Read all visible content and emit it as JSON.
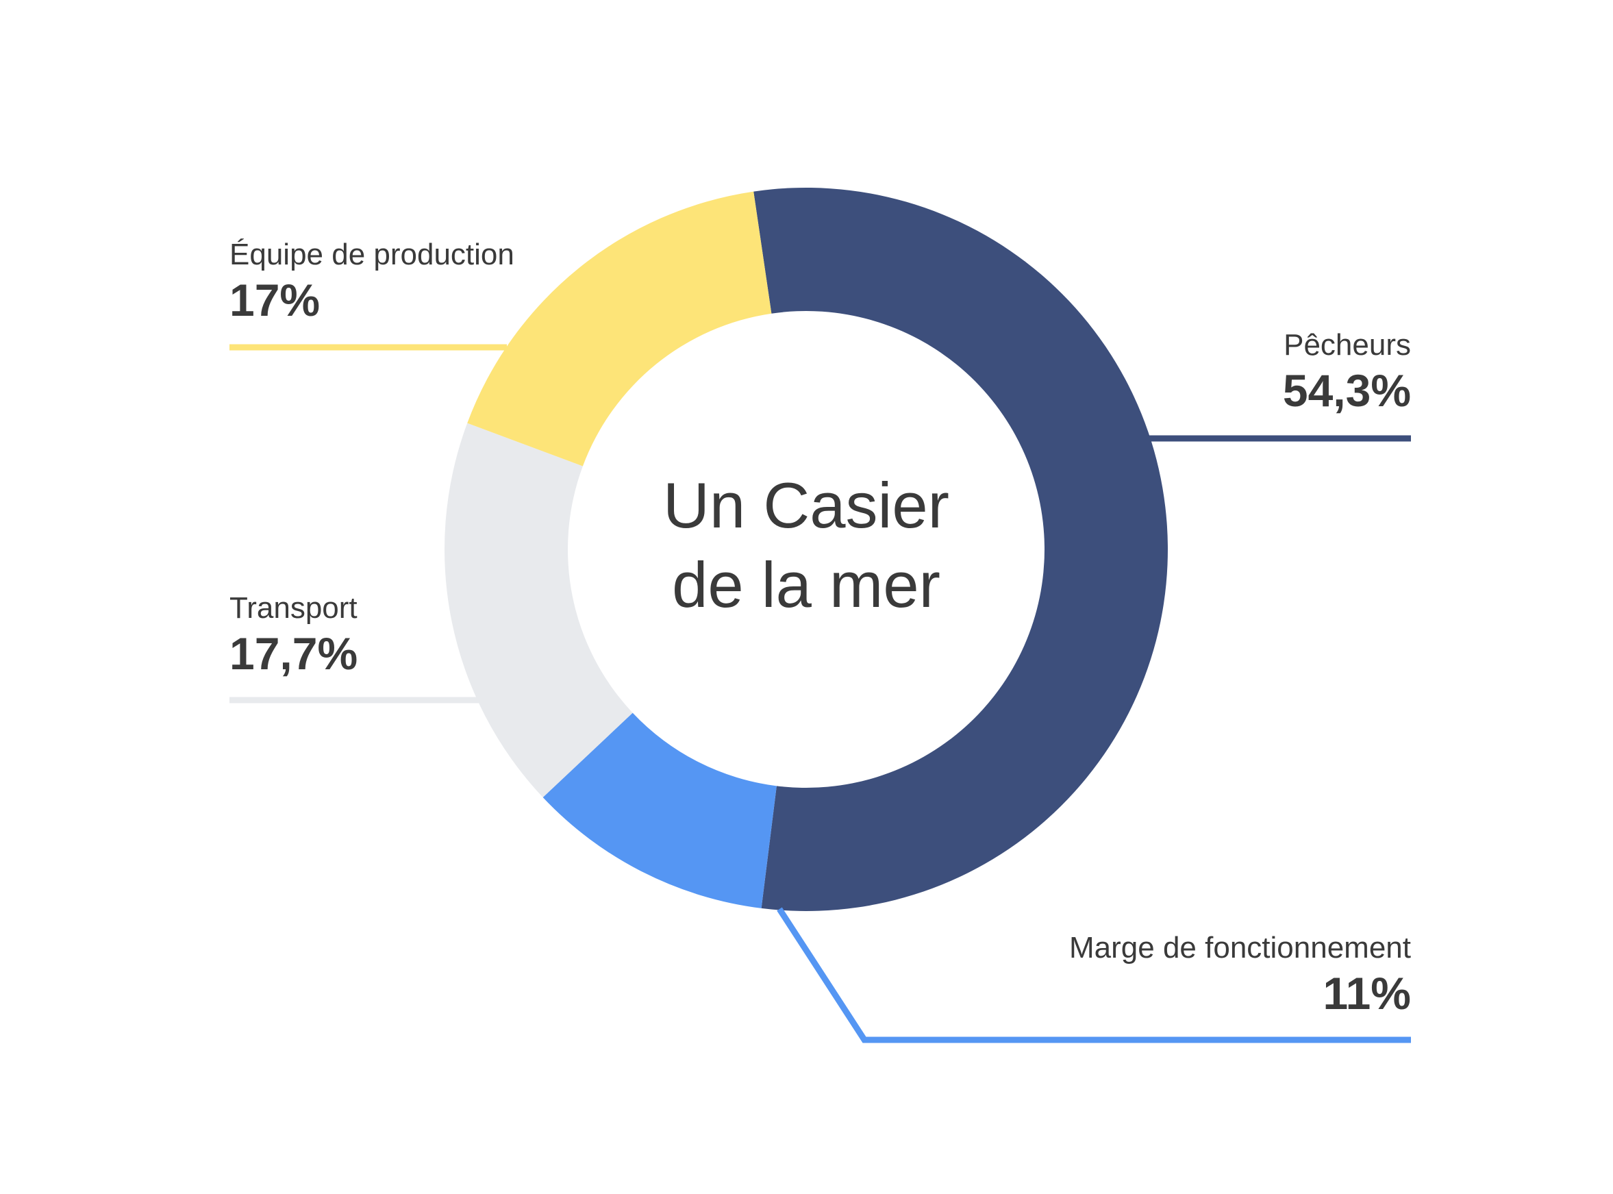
{
  "chart_data": {
    "type": "pie",
    "variant": "donut",
    "title_lines": [
      "Un Casier",
      "de la mer"
    ],
    "slices": [
      {
        "label": "Pêcheurs",
        "display": "54,3%",
        "value": 54.3,
        "color": "#3d4f7c"
      },
      {
        "label": "Marge de fonctionnement",
        "display": "11%",
        "value": 11,
        "color": "#5596f3"
      },
      {
        "label": "Transport",
        "display": "17,7%",
        "value": 17.7,
        "color": "#e8eaed"
      },
      {
        "label": "Équipe de production",
        "display": "17%",
        "value": 17,
        "color": "#fde478"
      }
    ]
  }
}
